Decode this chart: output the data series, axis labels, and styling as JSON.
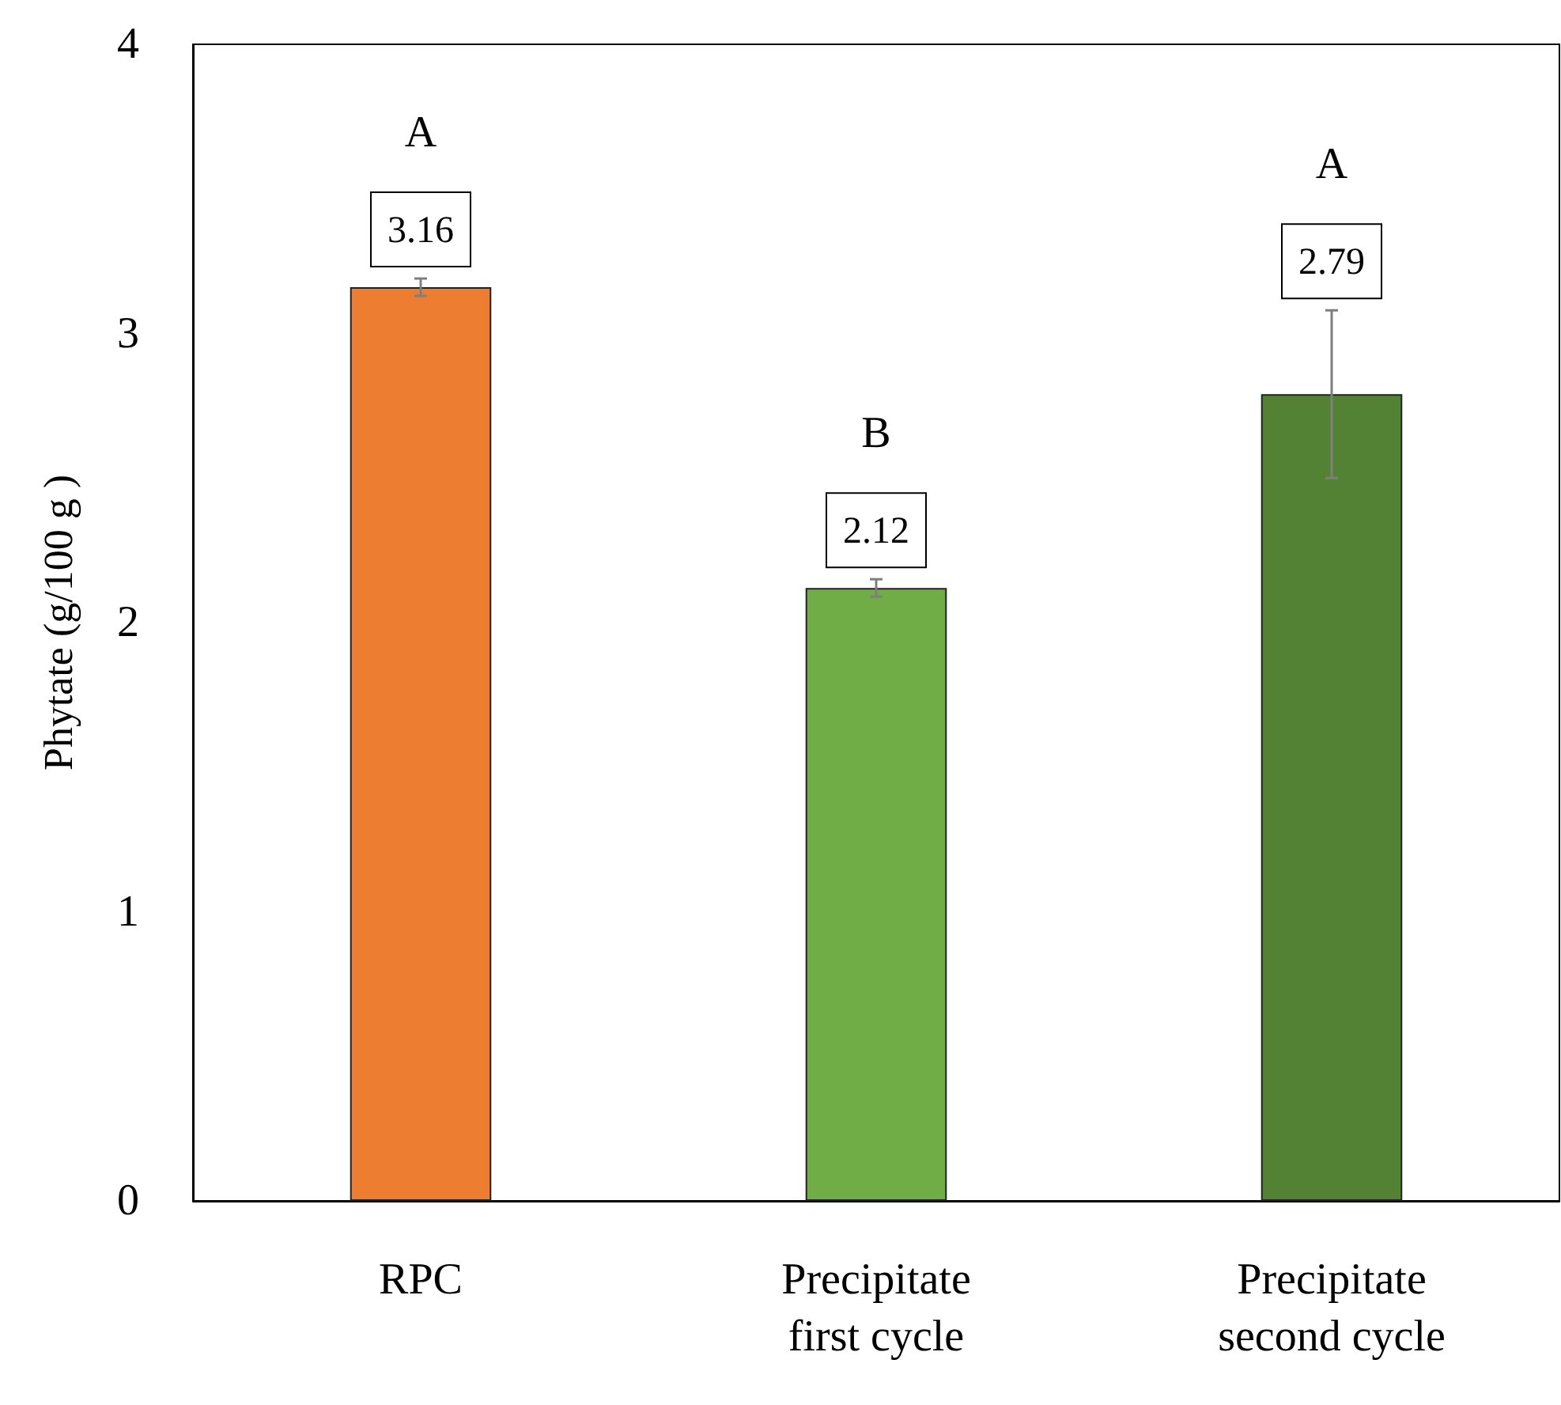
{
  "chart_data": {
    "type": "bar",
    "ylabel": "Phytate (g/100 g )",
    "categories": [
      "RPC",
      "Precipitate\nfirst cycle",
      "Precipitate\nsecond cycle"
    ],
    "values": [
      3.16,
      2.12,
      2.79
    ],
    "colors": [
      "#ed7d31",
      "#70ad47",
      "#548235"
    ],
    "errors": [
      0.03,
      0.03,
      0.29
    ],
    "data_labels": true,
    "annotations": [
      "A",
      "B",
      "A"
    ],
    "ylim": [
      0,
      4
    ],
    "yticks": [
      0,
      1,
      2,
      3,
      4
    ],
    "grid": false
  }
}
